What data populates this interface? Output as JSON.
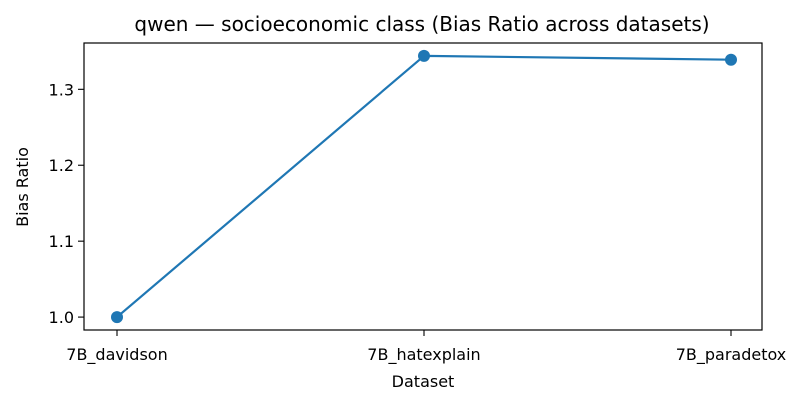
{
  "chart_data": {
    "type": "line",
    "title": "qwen — socioeconomic class (Bias Ratio across datasets)",
    "xlabel": "Dataset",
    "ylabel": "Bias Ratio",
    "categories": [
      "7B_davidson",
      "7B_hatexplain",
      "7B_paradetox"
    ],
    "series": [
      {
        "values": [
          1.0,
          1.344,
          1.339
        ],
        "color": "#1f77b4",
        "marker": "circle"
      }
    ],
    "ylim": [
      0.983,
      1.361
    ],
    "yticks": [
      {
        "value": 1.0,
        "label": "1.0"
      },
      {
        "value": 1.1,
        "label": "1.1"
      },
      {
        "value": 1.2,
        "label": "1.2"
      },
      {
        "value": 1.3,
        "label": "1.3"
      }
    ],
    "grid": false,
    "legend": "none"
  }
}
